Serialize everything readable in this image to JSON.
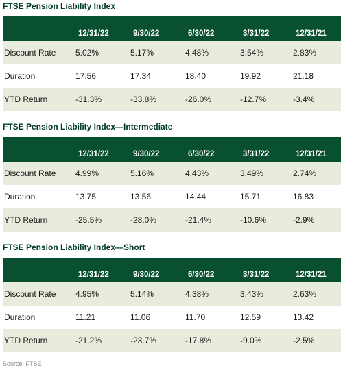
{
  "columns": [
    "12/31/22",
    "9/30/22",
    "6/30/22",
    "3/31/22",
    "12/31/21"
  ],
  "sections": [
    {
      "title": "FTSE Pension Liability Index",
      "rows": [
        {
          "label": "Discount Rate",
          "values": [
            "5.02%",
            "5.17%",
            "4.48%",
            "3.54%",
            "2.83%"
          ]
        },
        {
          "label": "Duration",
          "values": [
            "17.56",
            "17.34",
            "18.40",
            "19.92",
            "21.18"
          ]
        },
        {
          "label": "YTD Return",
          "values": [
            "-31.3%",
            "-33.8%",
            "-26.0%",
            "-12.7%",
            "-3.4%"
          ]
        }
      ]
    },
    {
      "title": "FTSE Pension Liability Index—Intermediate",
      "rows": [
        {
          "label": "Discount Rate",
          "values": [
            "4.99%",
            "5.16%",
            "4.43%",
            "3.49%",
            "2.74%"
          ]
        },
        {
          "label": "Duration",
          "values": [
            "13.75",
            "13.56",
            "14.44",
            "15.71",
            "16.83"
          ]
        },
        {
          "label": "YTD Return",
          "values": [
            "-25.5%",
            "-28.0%",
            "-21.4%",
            "-10.6%",
            "-2.9%"
          ]
        }
      ]
    },
    {
      "title": "FTSE Pension Liability Index—Short",
      "rows": [
        {
          "label": "Discount Rate",
          "values": [
            "4.95%",
            "5.14%",
            "4.38%",
            "3.43%",
            "2.63%"
          ]
        },
        {
          "label": "Duration",
          "values": [
            "11.21",
            "11.06",
            "11.70",
            "12.59",
            "13.42"
          ]
        },
        {
          "label": "YTD Return",
          "values": [
            "-21.2%",
            "-23.7%",
            "-17.8%",
            "-9.0%",
            "-2.5%"
          ]
        }
      ]
    }
  ],
  "source": "Source: FTSE",
  "colors": {
    "header_bg": "#08502f",
    "title": "#003a22",
    "row_shade": "#e7ecdc"
  }
}
